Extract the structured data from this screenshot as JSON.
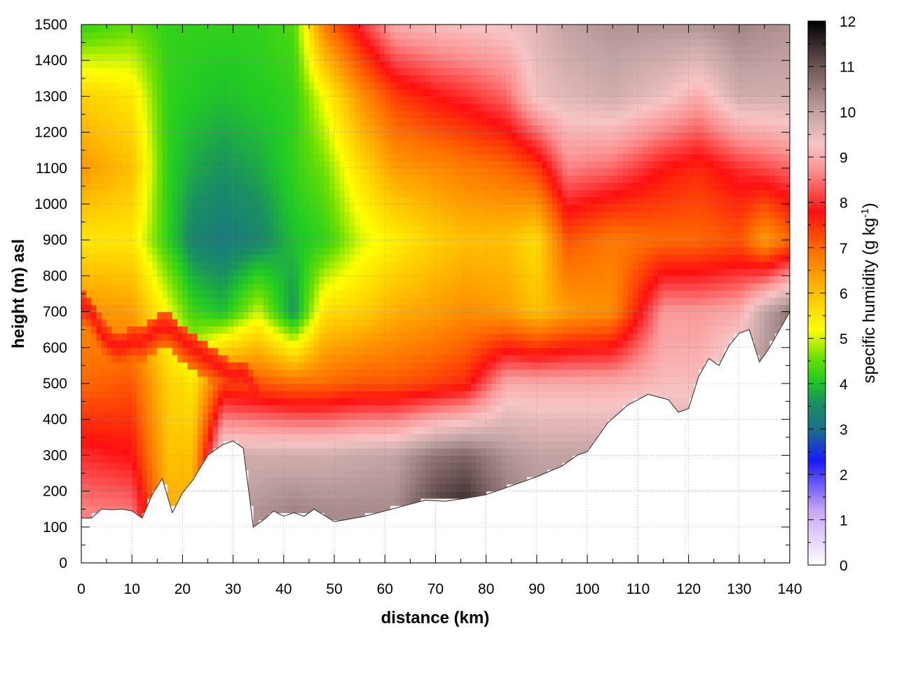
{
  "chart_data": {
    "type": "heatmap",
    "title": "",
    "xlabel": "distance (km)",
    "ylabel": "height (m) asl",
    "xlim": [
      0,
      140
    ],
    "ylim": [
      0,
      1500
    ],
    "x_ticks": [
      0,
      10,
      20,
      30,
      40,
      50,
      60,
      70,
      80,
      90,
      100,
      110,
      120,
      130,
      140
    ],
    "y_ticks": [
      0,
      100,
      200,
      300,
      400,
      500,
      600,
      700,
      800,
      900,
      1000,
      1100,
      1200,
      1300,
      1400,
      1500
    ],
    "grid": true,
    "colorbar": {
      "label_main": "specific humidity (g kg",
      "label_sup": "-1",
      "label_end": ")",
      "range": [
        0,
        12
      ],
      "ticks": [
        0,
        1,
        2,
        3,
        4,
        5,
        6,
        7,
        8,
        9,
        10,
        11,
        12
      ],
      "stops": [
        {
          "value": 0,
          "color": "#ffffff"
        },
        {
          "value": 1.2,
          "color": "#c9a8f5"
        },
        {
          "value": 2.3,
          "color": "#1a1aff"
        },
        {
          "value": 3.0,
          "color": "#1a6f8a"
        },
        {
          "value": 3.6,
          "color": "#1a9060"
        },
        {
          "value": 4.1,
          "color": "#22cc22"
        },
        {
          "value": 4.6,
          "color": "#6ee000"
        },
        {
          "value": 5.2,
          "color": "#ffff00"
        },
        {
          "value": 6.0,
          "color": "#ffc000"
        },
        {
          "value": 7.0,
          "color": "#ff6a00"
        },
        {
          "value": 7.8,
          "color": "#ff1010"
        },
        {
          "value": 8.7,
          "color": "#fb9090"
        },
        {
          "value": 9.3,
          "color": "#f7c4c4"
        },
        {
          "value": 10.0,
          "color": "#c2a3a3"
        },
        {
          "value": 11.0,
          "color": "#6e5656"
        },
        {
          "value": 12.0,
          "color": "#000000"
        }
      ]
    },
    "terrain": [
      [
        0,
        125
      ],
      [
        2,
        125
      ],
      [
        4,
        150
      ],
      [
        6,
        148
      ],
      [
        8,
        150
      ],
      [
        10,
        145
      ],
      [
        12,
        125
      ],
      [
        14,
        190
      ],
      [
        16,
        235
      ],
      [
        18,
        140
      ],
      [
        20,
        195
      ],
      [
        22,
        230
      ],
      [
        25,
        300
      ],
      [
        28,
        330
      ],
      [
        30,
        340
      ],
      [
        32,
        320
      ],
      [
        34,
        100
      ],
      [
        36,
        120
      ],
      [
        38,
        145
      ],
      [
        40,
        130
      ],
      [
        42,
        140
      ],
      [
        44,
        130
      ],
      [
        46,
        150
      ],
      [
        50,
        115
      ],
      [
        52,
        120
      ],
      [
        56,
        130
      ],
      [
        60,
        145
      ],
      [
        64,
        160
      ],
      [
        68,
        175
      ],
      [
        72,
        172
      ],
      [
        76,
        180
      ],
      [
        80,
        190
      ],
      [
        85,
        215
      ],
      [
        90,
        240
      ],
      [
        95,
        270
      ],
      [
        98,
        300
      ],
      [
        100,
        310
      ],
      [
        104,
        390
      ],
      [
        108,
        440
      ],
      [
        112,
        470
      ],
      [
        116,
        455
      ],
      [
        118,
        420
      ],
      [
        120,
        430
      ],
      [
        122,
        520
      ],
      [
        124,
        570
      ],
      [
        126,
        550
      ],
      [
        128,
        605
      ],
      [
        130,
        640
      ],
      [
        132,
        650
      ],
      [
        134,
        560
      ],
      [
        136,
        600
      ],
      [
        138,
        650
      ],
      [
        140,
        700
      ]
    ],
    "boundary_layer_top": [
      [
        0,
        720
      ],
      [
        2,
        700
      ],
      [
        4,
        640
      ],
      [
        6,
        610
      ],
      [
        8,
        600
      ],
      [
        10,
        620
      ],
      [
        12,
        615
      ],
      [
        14,
        640
      ],
      [
        16,
        660
      ],
      [
        18,
        650
      ],
      [
        20,
        620
      ],
      [
        22,
        600
      ],
      [
        24,
        580
      ],
      [
        26,
        560
      ],
      [
        28,
        540
      ],
      [
        30,
        520
      ],
      [
        32,
        530
      ],
      [
        34,
        490
      ],
      [
        36,
        440
      ],
      [
        38,
        400
      ],
      [
        40,
        380
      ],
      [
        42,
        400
      ],
      [
        44,
        390
      ],
      [
        46,
        410
      ],
      [
        50,
        440
      ],
      [
        55,
        455
      ],
      [
        60,
        460
      ],
      [
        65,
        455
      ],
      [
        70,
        430
      ],
      [
        75,
        420
      ],
      [
        80,
        440
      ],
      [
        85,
        480
      ],
      [
        90,
        520
      ],
      [
        95,
        560
      ],
      [
        100,
        580
      ],
      [
        105,
        610
      ],
      [
        110,
        635
      ],
      [
        115,
        660
      ],
      [
        120,
        690
      ],
      [
        125,
        720
      ],
      [
        130,
        790
      ],
      [
        132,
        840
      ],
      [
        134,
        760
      ],
      [
        136,
        760
      ],
      [
        138,
        800
      ],
      [
        140,
        840
      ]
    ],
    "humidity_field": [
      {
        "x": 0,
        "h": [
          150,
          300,
          500,
          700,
          900,
          1100,
          1300,
          1500
        ],
        "q": [
          8.6,
          8.0,
          7.0,
          6.6,
          5.5,
          6.5,
          5.8,
          4.2
        ]
      },
      {
        "x": 10,
        "h": [
          150,
          300,
          500,
          700,
          900,
          1100,
          1300,
          1500
        ],
        "q": [
          8.5,
          7.8,
          7.2,
          6.4,
          5.5,
          6.0,
          5.5,
          4.5
        ]
      },
      {
        "x": 17,
        "h": [
          150,
          300,
          500,
          700,
          900,
          1100,
          1300,
          1500
        ],
        "q": [
          6.2,
          6.0,
          5.8,
          5.2,
          4.2,
          4.2,
          4.2,
          4.2
        ]
      },
      {
        "x": 22,
        "h": [
          150,
          300,
          500,
          700,
          900,
          1100,
          1300,
          1500
        ],
        "q": [
          6.2,
          6.0,
          5.5,
          4.3,
          3.4,
          3.8,
          4.1,
          4.2
        ]
      },
      {
        "x": 28,
        "h": [
          150,
          300,
          500,
          700,
          900,
          1100,
          1300,
          1500
        ],
        "q": [
          10.0,
          9.8,
          7.4,
          4.0,
          3.2,
          3.6,
          4.0,
          4.2
        ]
      },
      {
        "x": 35,
        "h": [
          150,
          300,
          500,
          700,
          900,
          1100,
          1300,
          1500
        ],
        "q": [
          10.2,
          9.8,
          7.2,
          5.0,
          3.4,
          3.8,
          4.1,
          4.2
        ]
      },
      {
        "x": 42,
        "h": [
          150,
          300,
          500,
          700,
          900,
          1100,
          1300,
          1500
        ],
        "q": [
          10.4,
          9.8,
          7.0,
          3.6,
          4.0,
          4.2,
          4.2,
          4.4
        ]
      },
      {
        "x": 48,
        "h": [
          150,
          300,
          500,
          700,
          900,
          1100,
          1300,
          1500
        ],
        "q": [
          10.3,
          9.8,
          7.0,
          5.6,
          4.2,
          4.6,
          5.2,
          6.8
        ]
      },
      {
        "x": 55,
        "h": [
          150,
          300,
          500,
          700,
          900,
          1100,
          1300,
          1500
        ],
        "q": [
          10.3,
          9.9,
          7.2,
          5.8,
          5.0,
          5.6,
          6.5,
          8.0
        ]
      },
      {
        "x": 62,
        "h": [
          150,
          300,
          500,
          700,
          900,
          1100,
          1300,
          1500
        ],
        "q": [
          10.3,
          10.0,
          7.2,
          6.2,
          5.4,
          6.4,
          7.4,
          9.0
        ]
      },
      {
        "x": 70,
        "h": [
          150,
          300,
          500,
          700,
          900,
          1100,
          1300,
          1500
        ],
        "q": [
          11.3,
          10.6,
          7.4,
          6.4,
          5.8,
          6.6,
          7.8,
          9.2
        ]
      },
      {
        "x": 76,
        "h": [
          150,
          300,
          500,
          700,
          900,
          1100,
          1300,
          1500
        ],
        "q": [
          11.6,
          10.8,
          7.6,
          6.6,
          6.0,
          6.8,
          8.0,
          9.3
        ]
      },
      {
        "x": 84,
        "h": [
          150,
          300,
          500,
          700,
          900,
          1100,
          1300,
          1500
        ],
        "q": [
          10.6,
          10.2,
          9.0,
          6.4,
          6.0,
          7.0,
          8.4,
          9.4
        ]
      },
      {
        "x": 90,
        "h": [
          150,
          300,
          500,
          700,
          900,
          1100,
          1300,
          1500
        ],
        "q": [
          10.2,
          10.0,
          9.0,
          6.0,
          5.6,
          7.4,
          9.4,
          9.6
        ]
      },
      {
        "x": 96,
        "h": [
          150,
          300,
          500,
          700,
          900,
          1100,
          1300,
          1500
        ],
        "q": [
          10.2,
          10.0,
          9.0,
          6.4,
          7.2,
          8.6,
          9.6,
          10.0
        ]
      },
      {
        "x": 105,
        "h": [
          150,
          300,
          500,
          700,
          900,
          1100,
          1300,
          1500
        ],
        "q": [
          10.2,
          10.0,
          9.0,
          6.6,
          6.8,
          8.4,
          9.8,
          10.2
        ]
      },
      {
        "x": 115,
        "h": [
          150,
          300,
          500,
          700,
          900,
          1100,
          1300,
          1500
        ],
        "q": [
          10.2,
          10.0,
          9.2,
          8.8,
          7.0,
          7.8,
          9.4,
          10.2
        ]
      },
      {
        "x": 122,
        "h": [
          150,
          300,
          500,
          700,
          900,
          1100,
          1300,
          1500
        ],
        "q": [
          10.2,
          10.0,
          9.2,
          8.8,
          7.0,
          7.6,
          9.0,
          10.2
        ]
      },
      {
        "x": 130,
        "h": [
          150,
          300,
          500,
          700,
          900,
          1100,
          1300,
          1500
        ],
        "q": [
          10.6,
          10.4,
          10.0,
          9.0,
          7.2,
          8.0,
          9.8,
          10.4
        ]
      },
      {
        "x": 135,
        "h": [
          150,
          300,
          500,
          700,
          900,
          1100,
          1300,
          1500
        ],
        "q": [
          10.6,
          10.4,
          10.2,
          10.0,
          6.4,
          8.2,
          9.8,
          10.3
        ]
      },
      {
        "x": 140,
        "h": [
          150,
          300,
          500,
          700,
          900,
          1100,
          1300,
          1500
        ],
        "q": [
          11.0,
          10.8,
          10.6,
          10.6,
          7.0,
          8.4,
          9.8,
          10.2
        ]
      }
    ]
  }
}
